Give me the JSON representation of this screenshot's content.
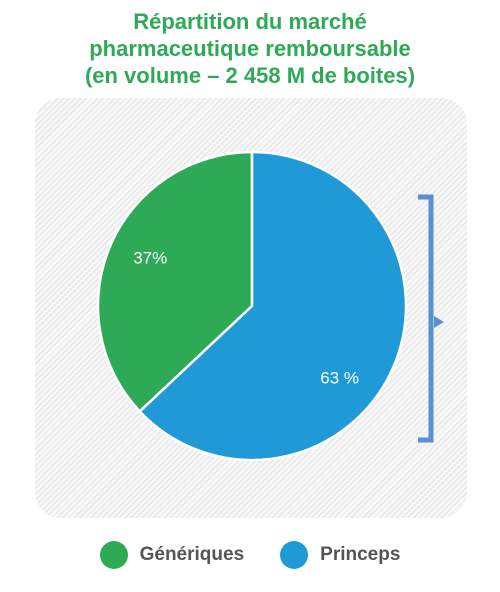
{
  "chart_data": {
    "type": "pie",
    "title": [
      "Répartition du marché",
      "pharmaceutique remboursable",
      "(en volume – 2 458 M de boites)"
    ],
    "slices": [
      {
        "name": "Génériques",
        "value": 37,
        "label": "37%",
        "color": "#2eaa57"
      },
      {
        "name": "Princeps",
        "value": 63,
        "label": "63 %",
        "color": "#1f9ad6"
      }
    ],
    "start_angle_deg": 0,
    "direction": "counterclockwise",
    "legend_position": "bottom"
  },
  "colors": {
    "title": "#2eaa57",
    "bracket": "#5b8fd1"
  }
}
